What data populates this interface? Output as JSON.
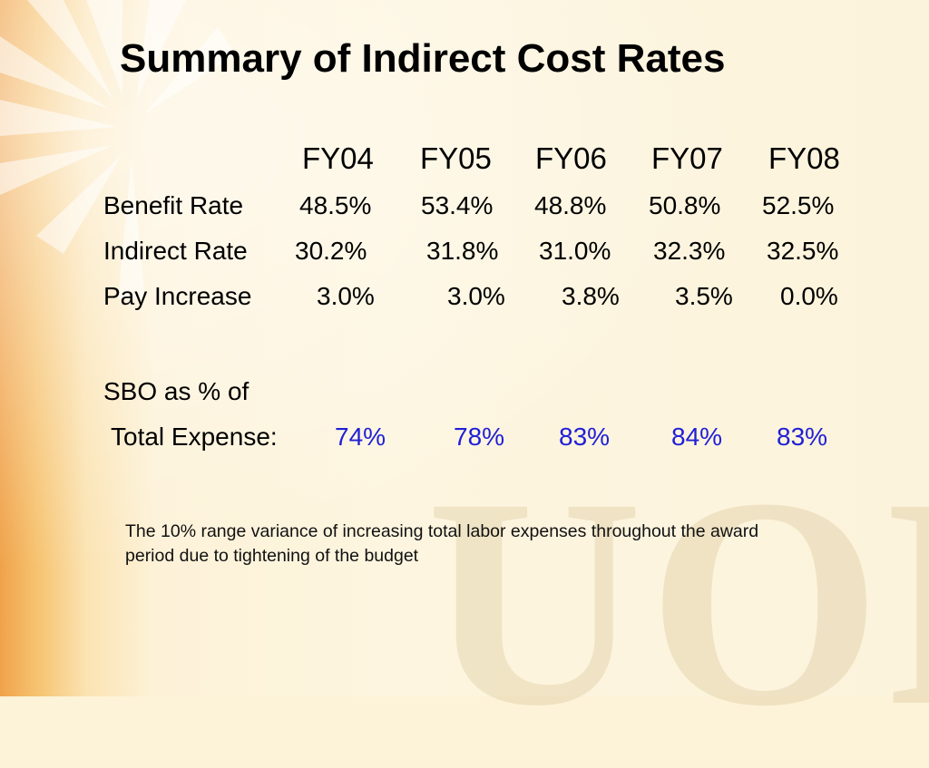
{
  "slide": {
    "title": "Summary of Indirect Cost Rates",
    "watermark": "UOP"
  },
  "table": {
    "years": [
      "FY04",
      "FY05",
      "FY06",
      "FY07",
      "FY08"
    ],
    "rows": [
      {
        "label": "Benefit Rate",
        "values": [
          "48.5%",
          "53.4%",
          "48.8%",
          "50.8%",
          "52.5%"
        ]
      },
      {
        "label": "Indirect Rate",
        "values": [
          "30.2%",
          "31.8%",
          "31.0%",
          "32.3%",
          "32.5%"
        ]
      },
      {
        "label": "Pay Increase",
        "values": [
          "3.0%",
          "3.0%",
          "3.8%",
          "3.5%",
          "0.0%"
        ]
      }
    ],
    "sbo": {
      "label_line1": "SBO as % of",
      "label_line2": "Total Expense:",
      "values": [
        "74%",
        "78%",
        "83%",
        "84%",
        "83%"
      ]
    }
  },
  "note": "The 10% range variance of increasing total labor expenses throughout the award period due to tightening of the budget",
  "colors": {
    "highlight": "#1f1fd6",
    "background": "#fdf3d8"
  }
}
